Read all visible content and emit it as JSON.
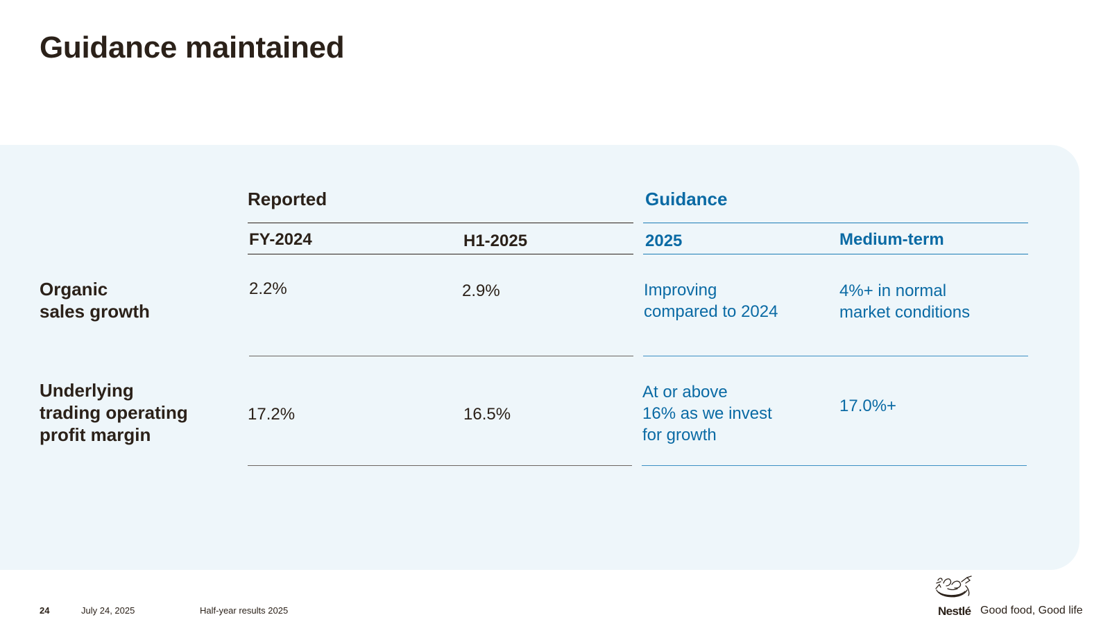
{
  "title": "Guidance maintained",
  "groups": {
    "reported": "Reported",
    "guidance": "Guidance"
  },
  "columns": {
    "fy2024": "FY-2024",
    "h12025": "H1-2025",
    "y2025": "2025",
    "medium_term": "Medium-term"
  },
  "rows": [
    {
      "label": [
        "Organic",
        "sales growth"
      ],
      "fy2024": "2.2%",
      "h12025": "2.9%",
      "guidance_2025": [
        "Improving",
        "compared to 2024"
      ],
      "medium_term": [
        "4%+ in normal",
        "market conditions"
      ]
    },
    {
      "label": [
        "Underlying",
        "trading operating",
        "profit margin"
      ],
      "fy2024": "17.2%",
      "h12025": "16.5%",
      "guidance_2025": [
        "At or above",
        "16% as we invest",
        "for growth"
      ],
      "medium_term": [
        "17.0%+"
      ]
    }
  ],
  "footer": {
    "page_number": "24",
    "date": "July 24, 2025",
    "event": "Half-year results 2025",
    "brand": "Nestlé",
    "tagline": "Good food, Good life"
  },
  "colors": {
    "text_dark": "#2b2119",
    "accent_blue": "#0a6aa4",
    "panel_bg": "#eef6fa"
  }
}
